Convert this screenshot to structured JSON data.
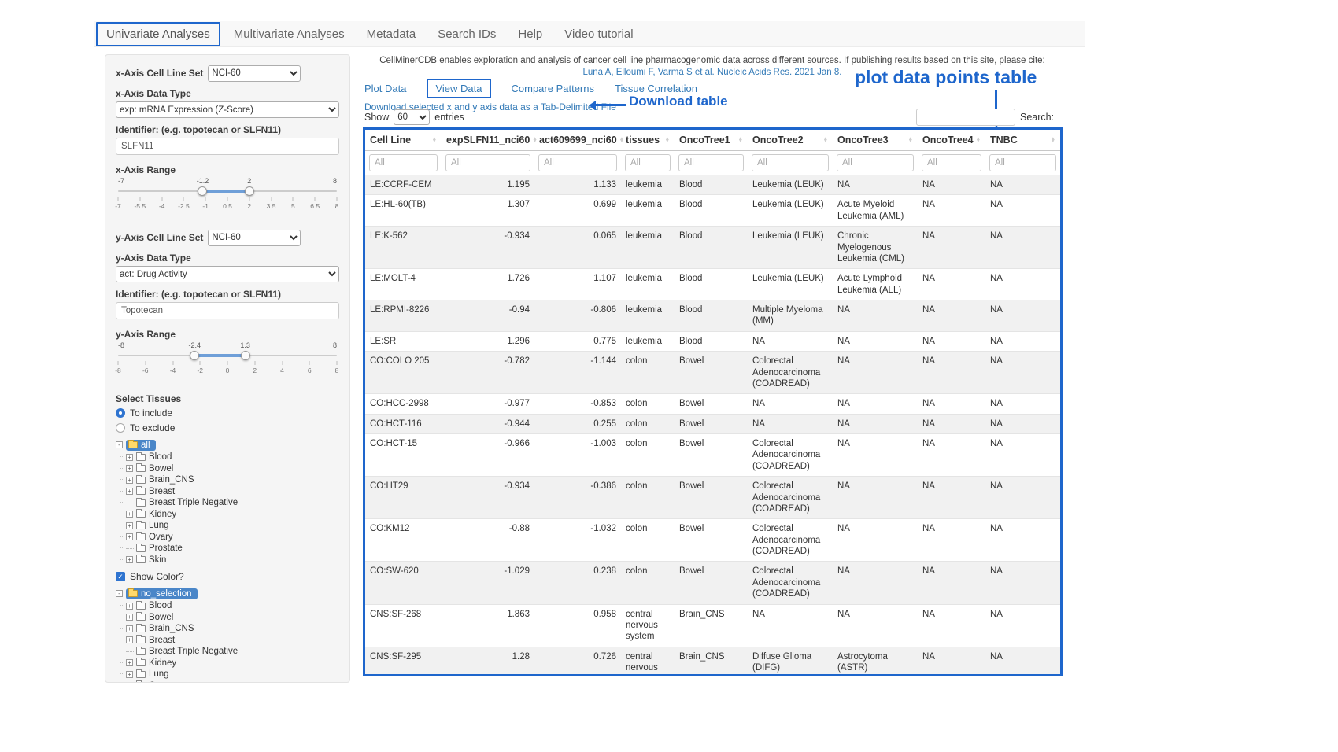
{
  "colors": {
    "annotation": "#1e66cc",
    "link": "#337ab7",
    "slider_bar": "#6f9fd8",
    "tree_selected_bg": "#4a86c8"
  },
  "navbar": {
    "items": [
      {
        "label": "Univariate Analyses",
        "active": true
      },
      {
        "label": "Multivariate Analyses",
        "active": false
      },
      {
        "label": "Metadata",
        "active": false
      },
      {
        "label": "Search IDs",
        "active": false
      },
      {
        "label": "Help",
        "active": false
      },
      {
        "label": "Video tutorial",
        "active": false
      }
    ]
  },
  "sidebar": {
    "x_cell_line_set_label": "x-Axis Cell Line Set",
    "x_cell_line_set_value": "NCI-60",
    "x_data_type_label": "x-Axis Data Type",
    "x_data_type_value": "exp: mRNA Expression (Z-Score)",
    "x_identifier_label": "Identifier: (e.g. topotecan or SLFN11)",
    "x_identifier_value": "SLFN11",
    "x_range_label": "x-Axis Range",
    "x_range": {
      "min": -7,
      "max": 8,
      "from": -1.2,
      "to": 2,
      "from_label": "-1.2",
      "to_label": "2",
      "ticks": [
        "-7",
        "-5.5",
        "-4",
        "-2.5",
        "-1",
        "0.5",
        "2",
        "3.5",
        "5",
        "6.5",
        "8"
      ]
    },
    "y_cell_line_set_label": "y-Axis Cell Line Set",
    "y_cell_line_set_value": "NCI-60",
    "y_data_type_label": "y-Axis Data Type",
    "y_data_type_value": "act: Drug Activity",
    "y_identifier_label": "Identifier: (e.g. topotecan or SLFN11)",
    "y_identifier_value": "Topotecan",
    "y_range_label": "y-Axis Range",
    "y_range": {
      "min": -8,
      "max": 8,
      "from": -2.4,
      "to": 1.3,
      "from_label": "-2.4",
      "to_label": "1.3",
      "ticks": [
        "-8",
        "-6",
        "-4",
        "-2",
        "0",
        "2",
        "4",
        "6",
        "8"
      ]
    },
    "select_tissues_label": "Select Tissues",
    "radio_include": "To include",
    "radio_exclude": "To exclude",
    "include_tree_root": "all",
    "exclude_tree_root": "no_selection",
    "show_color_label": "Show Color?",
    "tissue_items": [
      {
        "label": "Blood",
        "expandable": true
      },
      {
        "label": "Bowel",
        "expandable": true
      },
      {
        "label": "Brain_CNS",
        "expandable": true
      },
      {
        "label": "Breast",
        "expandable": true
      },
      {
        "label": "Breast Triple Negative",
        "expandable": false
      },
      {
        "label": "Kidney",
        "expandable": true
      },
      {
        "label": "Lung",
        "expandable": true
      },
      {
        "label": "Ovary",
        "expandable": true
      },
      {
        "label": "Prostate",
        "expandable": false
      },
      {
        "label": "Skin",
        "expandable": true
      }
    ]
  },
  "main": {
    "description": "CellMinerCDB enables exploration and analysis of cancer cell line pharmacogenomic data across different sources. If publishing results based on this site, please cite:",
    "citation": "Luna A, Elloumi F, Varma S et al. Nucleic Acids Res. 2021 Jan 8.",
    "tabs": [
      {
        "label": "Plot Data",
        "active": false
      },
      {
        "label": "View Data",
        "active": true
      },
      {
        "label": "Compare Patterns",
        "active": false
      },
      {
        "label": "Tissue Correlation",
        "active": false
      }
    ],
    "download_link": "Download selected x and y axis data as a Tab-Delimited File"
  },
  "annotations": {
    "download_table": "Download table",
    "plot_table": "plot data points table"
  },
  "table": {
    "show_label": "Show",
    "entries_value": "60",
    "entries_label": "entries",
    "search_label": "Search:",
    "filter_placeholder": "All",
    "columns": [
      "Cell Line",
      "expSLFN11_nci60",
      "act609699_nci60",
      "tissues",
      "OncoTree1",
      "OncoTree2",
      "OncoTree3",
      "OncoTree4",
      "TNBC"
    ],
    "rows": [
      [
        "LE:CCRF-CEM",
        "1.195",
        "1.133",
        "leukemia",
        "Blood",
        "Leukemia (LEUK)",
        "NA",
        "NA",
        "NA"
      ],
      [
        "LE:HL-60(TB)",
        "1.307",
        "0.699",
        "leukemia",
        "Blood",
        "Leukemia (LEUK)",
        "Acute Myeloid Leukemia (AML)",
        "NA",
        "NA"
      ],
      [
        "LE:K-562",
        "-0.934",
        "0.065",
        "leukemia",
        "Blood",
        "Leukemia (LEUK)",
        "Chronic Myelogenous Leukemia (CML)",
        "NA",
        "NA"
      ],
      [
        "LE:MOLT-4",
        "1.726",
        "1.107",
        "leukemia",
        "Blood",
        "Leukemia (LEUK)",
        "Acute Lymphoid Leukemia (ALL)",
        "NA",
        "NA"
      ],
      [
        "LE:RPMI-8226",
        "-0.94",
        "-0.806",
        "leukemia",
        "Blood",
        "Multiple Myeloma (MM)",
        "NA",
        "NA",
        "NA"
      ],
      [
        "LE:SR",
        "1.296",
        "0.775",
        "leukemia",
        "Blood",
        "NA",
        "NA",
        "NA",
        "NA"
      ],
      [
        "CO:COLO 205",
        "-0.782",
        "-1.144",
        "colon",
        "Bowel",
        "Colorectal Adenocarcinoma (COADREAD)",
        "NA",
        "NA",
        "NA"
      ],
      [
        "CO:HCC-2998",
        "-0.977",
        "-0.853",
        "colon",
        "Bowel",
        "NA",
        "NA",
        "NA",
        "NA"
      ],
      [
        "CO:HCT-116",
        "-0.944",
        "0.255",
        "colon",
        "Bowel",
        "NA",
        "NA",
        "NA",
        "NA"
      ],
      [
        "CO:HCT-15",
        "-0.966",
        "-1.003",
        "colon",
        "Bowel",
        "Colorectal Adenocarcinoma (COADREAD)",
        "NA",
        "NA",
        "NA"
      ],
      [
        "CO:HT29",
        "-0.934",
        "-0.386",
        "colon",
        "Bowel",
        "Colorectal Adenocarcinoma (COADREAD)",
        "NA",
        "NA",
        "NA"
      ],
      [
        "CO:KM12",
        "-0.88",
        "-1.032",
        "colon",
        "Bowel",
        "Colorectal Adenocarcinoma (COADREAD)",
        "NA",
        "NA",
        "NA"
      ],
      [
        "CO:SW-620",
        "-1.029",
        "0.238",
        "colon",
        "Bowel",
        "Colorectal Adenocarcinoma (COADREAD)",
        "NA",
        "NA",
        "NA"
      ],
      [
        "CNS:SF-268",
        "1.863",
        "0.958",
        "central nervous system",
        "Brain_CNS",
        "NA",
        "NA",
        "NA",
        "NA"
      ],
      [
        "CNS:SF-295",
        "1.28",
        "0.726",
        "central nervous system",
        "Brain_CNS",
        "Diffuse Glioma (DIFG)",
        "Astrocytoma (ASTR)",
        "NA",
        "NA"
      ]
    ]
  }
}
